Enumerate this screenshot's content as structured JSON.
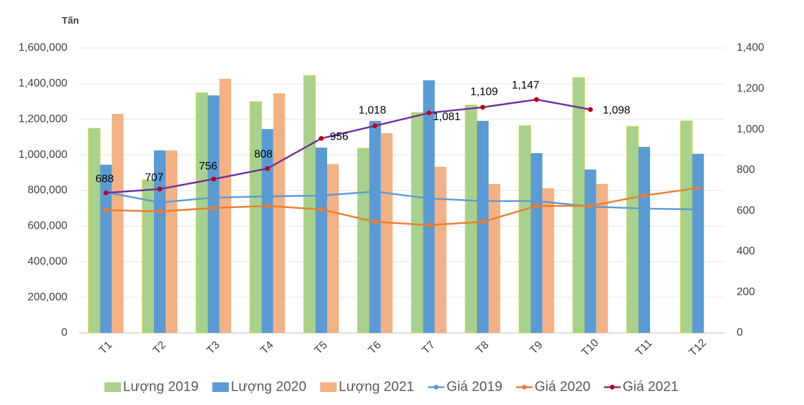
{
  "chart_data": {
    "type": "combo",
    "y_label": "Tấn",
    "categories": [
      "T1",
      "T2",
      "T3",
      "T4",
      "T5",
      "T6",
      "T7",
      "T8",
      "T9",
      "T10",
      "T11",
      "T12"
    ],
    "series": [
      {
        "name": "Lượng 2019",
        "type": "bar",
        "color": "#a9d18e",
        "values": [
          1149000,
          860000,
          1349000,
          1299000,
          1446000,
          1037000,
          1238000,
          1280000,
          1164000,
          1434000,
          1160000,
          1191000
        ]
      },
      {
        "name": "Lượng 2020",
        "type": "bar",
        "color": "#5b9bd5",
        "values": [
          945000,
          1025000,
          1334000,
          1145000,
          1041000,
          1191000,
          1419000,
          1191000,
          1010000,
          918000,
          1045000,
          1006000
        ]
      },
      {
        "name": "Lượng 2021",
        "type": "bar",
        "color": "#f4b183",
        "values": [
          1230000,
          1025000,
          1427000,
          1346000,
          948000,
          1122000,
          933000,
          837000,
          813000,
          837000,
          null,
          null
        ]
      },
      {
        "name": "Giá 2019",
        "type": "line",
        "axis": "y2",
        "color": "#5b9bd5",
        "values": [
          692,
          641,
          665,
          671,
          675,
          695,
          661,
          648,
          648,
          621,
          611,
          607
        ]
      },
      {
        "name": "Giá 2020",
        "type": "line",
        "axis": "y2",
        "color": "#ed7d31",
        "values": [
          604,
          597,
          614,
          624,
          607,
          546,
          530,
          546,
          624,
          624,
          675,
          712
        ]
      },
      {
        "name": "Giá 2021",
        "type": "line",
        "axis": "y2",
        "color": "#7030a0",
        "marker_color": "#c00000",
        "values": [
          688,
          707,
          756,
          808,
          956,
          1018,
          1081,
          1109,
          1147,
          1098,
          null,
          null
        ],
        "value_labels": [
          "688",
          "707",
          "756",
          "808",
          "956",
          "1,018",
          "1,081",
          "1,109",
          "1,147",
          "1,098",
          null,
          null
        ]
      }
    ],
    "ylim": [
      0,
      1600000
    ],
    "yticks": [
      0,
      {
        "value": 200000,
        "label": "200,000"
      },
      {
        "value": 400000,
        "label": "400,000"
      },
      {
        "value": 600000,
        "label": "600,000"
      },
      {
        "value": 800000,
        "label": "800,000"
      },
      {
        "value": 1000000,
        "label": "1,000,000"
      },
      {
        "value": 1200000,
        "label": "1,200,000"
      },
      {
        "value": 1400000,
        "label": "1,400,000"
      },
      {
        "value": 1600000,
        "label": "1,600,000"
      }
    ],
    "y2lim": [
      0,
      1400
    ],
    "y2ticks": [
      0,
      200,
      400,
      600,
      800,
      {
        "value": 1000,
        "label": "1,000"
      },
      {
        "value": 1200,
        "label": "1,200"
      },
      {
        "value": 1400,
        "label": "1,400"
      }
    ],
    "grid": true,
    "legend": "bottom"
  }
}
